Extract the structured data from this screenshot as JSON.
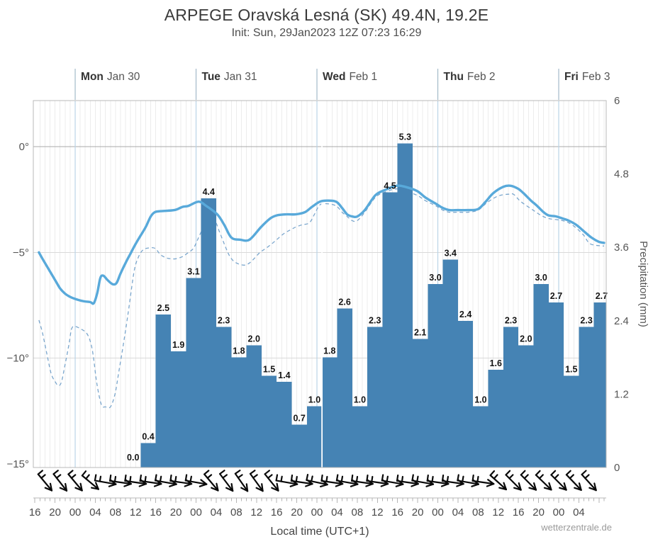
{
  "title": "ARPEGE Oravská Lesná (SK) 49.4N, 19.2E",
  "subtitle": "Init: Sun, 29Jan2023 12Z 07:23 16:29",
  "watermark": "wetterzentrale.de",
  "x_axis": {
    "label": "Local time (UTC+1)",
    "hour_labels": [
      "16",
      "20",
      "00",
      "04",
      "08",
      "12",
      "16",
      "20",
      "00",
      "04",
      "08",
      "12",
      "16",
      "20",
      "00",
      "04",
      "08",
      "12",
      "16",
      "20",
      "00",
      "04",
      "08",
      "12",
      "16",
      "20",
      "00",
      "04"
    ],
    "hour_label_interval_h": 4
  },
  "left_axis": {
    "labels": [
      "0°",
      "−5°",
      "−10°",
      "−15°"
    ],
    "values": [
      0,
      -5,
      -10,
      -15
    ],
    "unit": "°C"
  },
  "right_axis": {
    "labels": [
      "6",
      "4.8",
      "3.6",
      "2.4",
      "1.2",
      "0"
    ],
    "values": [
      6,
      4.8,
      3.6,
      2.4,
      1.2,
      0
    ],
    "title": "Precipitation (mm)"
  },
  "days": [
    {
      "name": "Mon",
      "date": "Jan 30",
      "t": 8
    },
    {
      "name": "Tue",
      "date": "Jan 31",
      "t": 32
    },
    {
      "name": "Wed",
      "date": "Feb 1",
      "t": 56
    },
    {
      "name": "Thu",
      "date": "Feb 2",
      "t": 80
    },
    {
      "name": "Fri",
      "date": "Feb 3",
      "t": 104
    }
  ],
  "colors": {
    "bar": "#4583b4",
    "temperature_line": "#58a9da",
    "dewpoint_line": "#7aa6cd",
    "hour_grid": "#ececec",
    "temp_grid": "#d9d9d9",
    "zero_grid": "#a8a8a8",
    "frame": "#b8b8b8",
    "day_line": "#bad3e6",
    "day_tick": "#a3bac9",
    "bar_label": "#141414",
    "tick_text": "#4a4a4a",
    "barb": "#0a0a0a"
  },
  "chart_data": {
    "type": "meteogram (bar + line)",
    "title": "ARPEGE Oravská Lesná (SK) 49.4N, 19.2E",
    "x_unit": "hours since Sun 29Jan2023 16:00 local (UTC+1)",
    "x_range_h": [
      0,
      113.4
    ],
    "temp_axis": {
      "unit": "°C",
      "ticks": [
        0,
        -5,
        -10,
        -15
      ],
      "side": "left"
    },
    "precip_axis": {
      "unit": "mm",
      "ticks": [
        6,
        4.8,
        3.6,
        2.4,
        1.2,
        0
      ],
      "side": "right",
      "label": "Precipitation (mm)"
    },
    "precipitation_3h": {
      "type": "bar",
      "unit": "mm / 3h",
      "first_slot_start_t": 18,
      "slot_hours": 3,
      "values": [
        0.0,
        0.4,
        2.5,
        1.9,
        3.1,
        4.4,
        2.3,
        1.8,
        2.0,
        1.5,
        1.4,
        0.7,
        1.0,
        1.8,
        2.6,
        1.0,
        2.3,
        4.5,
        5.3,
        2.1,
        3.0,
        3.4,
        2.4,
        1.0,
        1.6,
        2.3,
        2.0,
        3.0,
        2.7,
        1.5,
        2.3,
        2.7
      ]
    },
    "temperature": {
      "type": "line",
      "style": "solid",
      "unit": "°C",
      "points": [
        [
          0.8,
          -5.0
        ],
        [
          1.5,
          -5.3
        ],
        [
          3,
          -5.9
        ],
        [
          4,
          -6.3
        ],
        [
          5,
          -6.7
        ],
        [
          6,
          -6.95
        ],
        [
          7,
          -7.1
        ],
        [
          8,
          -7.2
        ],
        [
          9.5,
          -7.3
        ],
        [
          11,
          -7.35
        ],
        [
          11.7,
          -7.4
        ],
        [
          12.4,
          -6.9
        ],
        [
          13,
          -6.2
        ],
        [
          13.6,
          -6.1
        ],
        [
          14.4,
          -6.3
        ],
        [
          15.4,
          -6.5
        ],
        [
          16.2,
          -6.45
        ],
        [
          17,
          -6.0
        ],
        [
          18,
          -5.5
        ],
        [
          19,
          -5.05
        ],
        [
          20,
          -4.6
        ],
        [
          21,
          -4.2
        ],
        [
          22,
          -3.8
        ],
        [
          23,
          -3.3
        ],
        [
          23.8,
          -3.1
        ],
        [
          25,
          -3.05
        ],
        [
          27.7,
          -3.0
        ],
        [
          29.3,
          -2.85
        ],
        [
          30.5,
          -2.8
        ],
        [
          32.5,
          -2.6
        ],
        [
          34,
          -2.8
        ],
        [
          36.2,
          -3.2
        ],
        [
          37.6,
          -3.7
        ],
        [
          39,
          -4.3
        ],
        [
          40.8,
          -4.4
        ],
        [
          42.6,
          -4.4
        ],
        [
          44.9,
          -3.8
        ],
        [
          46.7,
          -3.4
        ],
        [
          48,
          -3.25
        ],
        [
          50,
          -3.2
        ],
        [
          51.8,
          -3.2
        ],
        [
          53.6,
          -3.1
        ],
        [
          55,
          -2.85
        ],
        [
          56.6,
          -2.6
        ],
        [
          58,
          -2.55
        ],
        [
          59.8,
          -2.6
        ],
        [
          61,
          -2.9
        ],
        [
          62,
          -3.2
        ],
        [
          63,
          -3.3
        ],
        [
          64,
          -3.3
        ],
        [
          65.5,
          -3.0
        ],
        [
          67.6,
          -2.3
        ],
        [
          69.5,
          -2.05
        ],
        [
          71.8,
          -1.85
        ],
        [
          73.5,
          -1.9
        ],
        [
          75.9,
          -2.1
        ],
        [
          77.5,
          -2.4
        ],
        [
          79.6,
          -2.7
        ],
        [
          81,
          -2.9
        ],
        [
          82.3,
          -3.0
        ],
        [
          84,
          -3.0
        ],
        [
          86,
          -3.0
        ],
        [
          88,
          -2.95
        ],
        [
          89.5,
          -2.6
        ],
        [
          91,
          -2.2
        ],
        [
          93,
          -1.9
        ],
        [
          94.5,
          -1.85
        ],
        [
          96,
          -2.0
        ],
        [
          97,
          -2.2
        ],
        [
          98.5,
          -2.55
        ],
        [
          99.7,
          -2.8
        ],
        [
          101,
          -3.1
        ],
        [
          102,
          -3.25
        ],
        [
          103.5,
          -3.3
        ],
        [
          104.8,
          -3.4
        ],
        [
          106,
          -3.5
        ],
        [
          107.5,
          -3.7
        ],
        [
          109,
          -4.0
        ],
        [
          110.5,
          -4.3
        ],
        [
          112,
          -4.5
        ],
        [
          113,
          -4.55
        ]
      ]
    },
    "dewpoint": {
      "type": "line",
      "style": "dashed",
      "unit": "°C",
      "points": [
        [
          0.8,
          -8.2
        ],
        [
          1.5,
          -8.8
        ],
        [
          2.3,
          -9.7
        ],
        [
          3.2,
          -10.7
        ],
        [
          4,
          -11.1
        ],
        [
          4.7,
          -11.3
        ],
        [
          5.3,
          -11.1
        ],
        [
          6,
          -10.3
        ],
        [
          6.8,
          -9.3
        ],
        [
          7.3,
          -8.6
        ],
        [
          8,
          -8.5
        ],
        [
          9,
          -8.6
        ],
        [
          10.2,
          -8.8
        ],
        [
          11,
          -9.2
        ],
        [
          11.6,
          -9.9
        ],
        [
          12.3,
          -11.2
        ],
        [
          13.2,
          -12.2
        ],
        [
          14,
          -12.3
        ],
        [
          15,
          -12.3
        ],
        [
          15.9,
          -11.7
        ],
        [
          16.7,
          -10.6
        ],
        [
          17.6,
          -9.3
        ],
        [
          18.5,
          -7.9
        ],
        [
          19.7,
          -5.9
        ],
        [
          20.6,
          -5.2
        ],
        [
          21.4,
          -4.9
        ],
        [
          22.3,
          -4.8
        ],
        [
          23.8,
          -4.8
        ],
        [
          24.9,
          -5.1
        ],
        [
          26,
          -5.25
        ],
        [
          27,
          -5.3
        ],
        [
          28,
          -5.3
        ],
        [
          29.3,
          -5.2
        ],
        [
          30.5,
          -5.0
        ],
        [
          31.5,
          -4.8
        ],
        [
          32.5,
          -4.3
        ],
        [
          33.5,
          -3.8
        ],
        [
          34.5,
          -3.55
        ],
        [
          35.7,
          -3.5
        ],
        [
          36.6,
          -4.0
        ],
        [
          37.6,
          -4.6
        ],
        [
          38.5,
          -5.1
        ],
        [
          39.4,
          -5.4
        ],
        [
          40.5,
          -5.55
        ],
        [
          41.7,
          -5.6
        ],
        [
          42.6,
          -5.5
        ],
        [
          43.5,
          -5.3
        ],
        [
          44.7,
          -5.0
        ],
        [
          45.9,
          -4.8
        ],
        [
          47,
          -4.6
        ],
        [
          48,
          -4.4
        ],
        [
          49.5,
          -4.1
        ],
        [
          51,
          -3.9
        ],
        [
          51.8,
          -3.8
        ],
        [
          53,
          -3.7
        ],
        [
          54.5,
          -3.6
        ],
        [
          55.5,
          -3.2
        ],
        [
          56.6,
          -2.75
        ],
        [
          58,
          -2.7
        ],
        [
          59.8,
          -2.8
        ],
        [
          61,
          -3.1
        ],
        [
          62,
          -3.3
        ],
        [
          63,
          -3.5
        ],
        [
          64,
          -3.5
        ],
        [
          65.5,
          -3.1
        ],
        [
          67.6,
          -2.4
        ],
        [
          69.5,
          -2.15
        ],
        [
          71.8,
          -2.0
        ],
        [
          73.5,
          -2.1
        ],
        [
          75.9,
          -2.3
        ],
        [
          77.5,
          -2.55
        ],
        [
          79.6,
          -2.8
        ],
        [
          81,
          -3.0
        ],
        [
          82.3,
          -3.1
        ],
        [
          84,
          -3.1
        ],
        [
          86,
          -3.1
        ],
        [
          88,
          -3.0
        ],
        [
          89.5,
          -2.7
        ],
        [
          91,
          -2.45
        ],
        [
          92.4,
          -2.3
        ],
        [
          94,
          -2.25
        ],
        [
          95,
          -2.25
        ],
        [
          96.5,
          -2.6
        ],
        [
          98.9,
          -3.0
        ],
        [
          100.5,
          -3.25
        ],
        [
          102,
          -3.4
        ],
        [
          103.5,
          -3.45
        ],
        [
          104.8,
          -3.5
        ],
        [
          106,
          -3.6
        ],
        [
          107.5,
          -3.85
        ],
        [
          109,
          -4.2
        ],
        [
          110.3,
          -4.6
        ],
        [
          113,
          -4.7
        ]
      ]
    },
    "wind_barbs": {
      "description": "arrow screen angle in degrees, 0 = pointing right/east, positive = downward; wind from NW when ~45-55",
      "t_start": 2,
      "interval_h": 3,
      "angles_deg": [
        50,
        52,
        50,
        40,
        10,
        8,
        8,
        8,
        10,
        8,
        10,
        50,
        53,
        55,
        54,
        51,
        10,
        8,
        12,
        8,
        10,
        8,
        8,
        10,
        8,
        10,
        8,
        8,
        10,
        8,
        42,
        45,
        45,
        44,
        45,
        46,
        48
      ]
    },
    "layout": {
      "grid": "hourly vertical + temp horizontal",
      "legend": "none",
      "day_separators_t": [
        8,
        32,
        56,
        80,
        104
      ],
      "white_bar_separator_t": 57
    }
  }
}
